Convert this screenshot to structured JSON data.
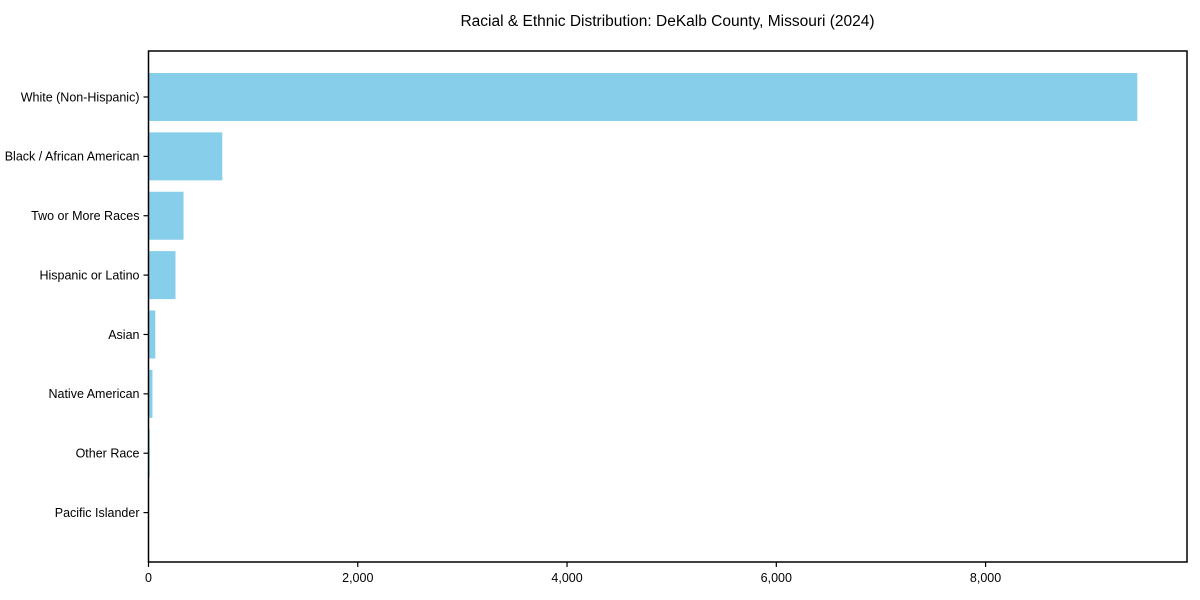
{
  "chart_data": {
    "type": "bar",
    "orientation": "horizontal",
    "title": "Racial & Ethnic Distribution: DeKalb County, Missouri (2024)",
    "xlabel": "",
    "ylabel": "",
    "categories": [
      "White (Non-Hispanic)",
      "Black / African American",
      "Two or More Races",
      "Hispanic or Latino",
      "Asian",
      "Native American",
      "Other Race",
      "Pacific Islander"
    ],
    "values": [
      9450,
      705,
      335,
      258,
      65,
      38,
      12,
      3
    ],
    "xlim": [
      0,
      9925
    ],
    "xticks": [
      0,
      2000,
      4000,
      6000,
      8000
    ],
    "xtick_labels": [
      "0",
      "2,000",
      "4,000",
      "6,000",
      "8,000"
    ],
    "bar_color": "#87CEEB",
    "axis_color": "#000000",
    "grid": false,
    "legend": "none"
  }
}
